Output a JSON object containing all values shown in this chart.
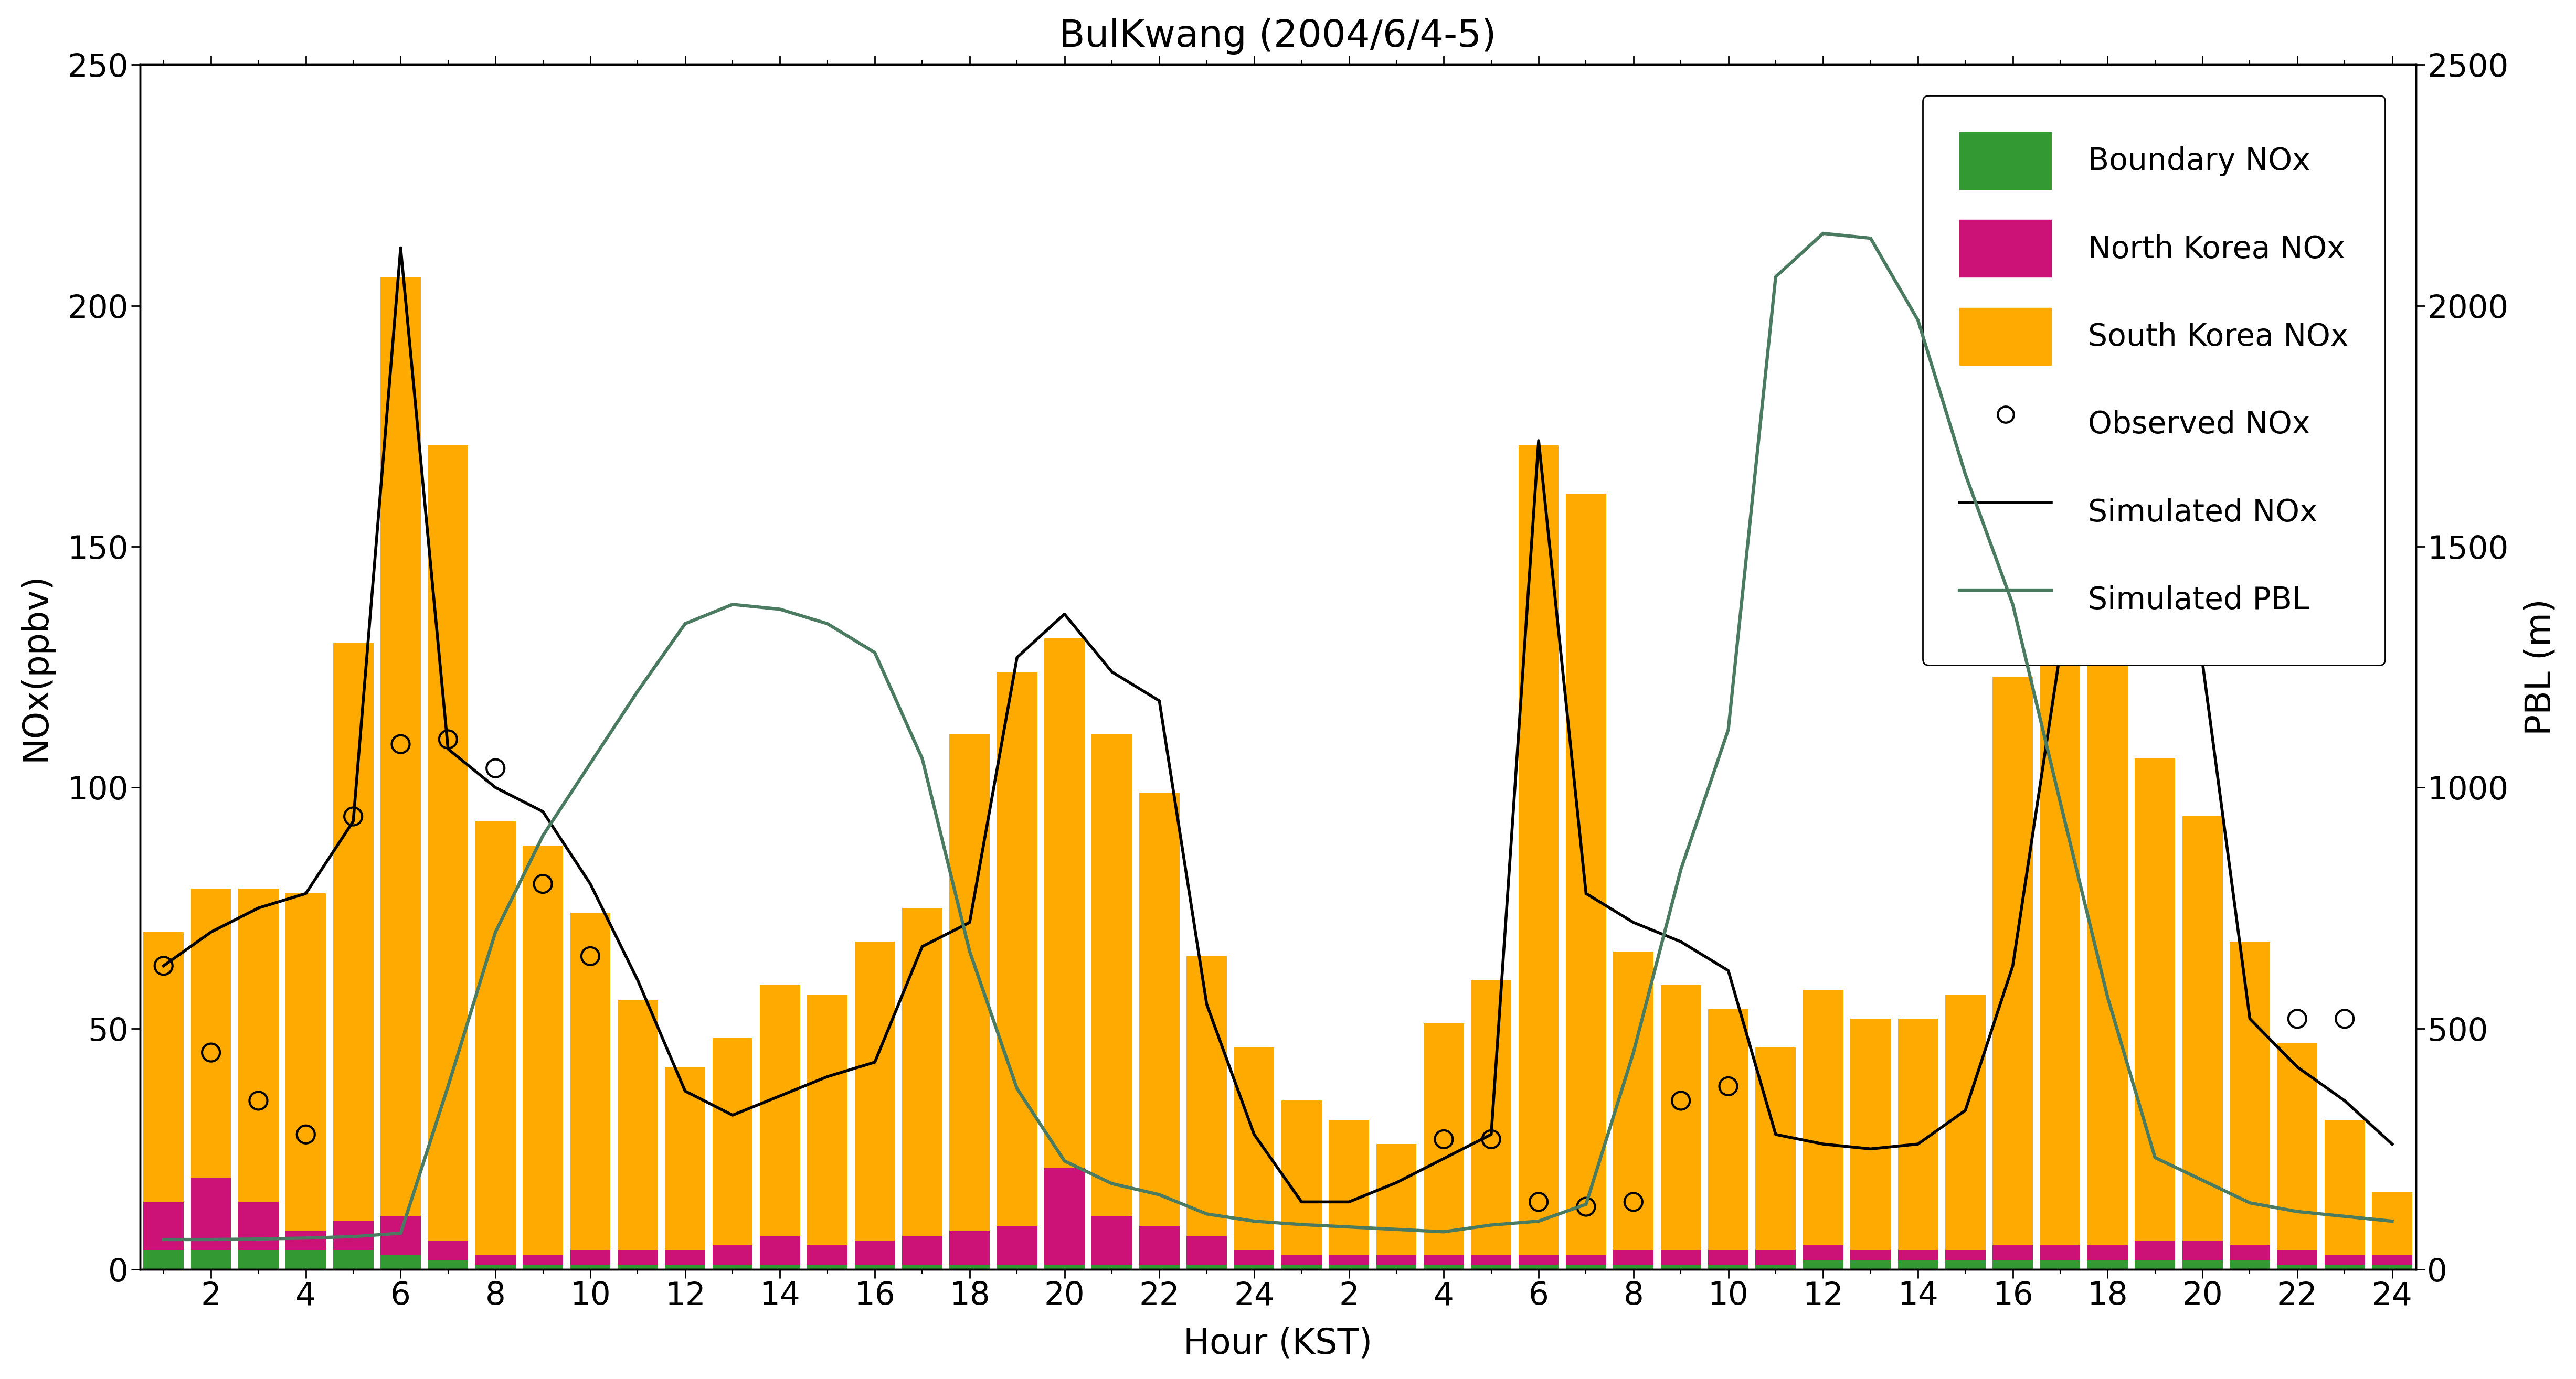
{
  "title": "BulKwang (2004/6/4-5)",
  "xlabel": "Hour (KST)",
  "ylabel_left": "NOx(ppbv)",
  "ylabel_right": "PBL (m)",
  "ylim_left": [
    0,
    250
  ],
  "ylim_right": [
    0,
    2500
  ],
  "hours": [
    1,
    2,
    3,
    4,
    5,
    6,
    7,
    8,
    9,
    10,
    11,
    12,
    13,
    14,
    15,
    16,
    17,
    18,
    19,
    20,
    21,
    22,
    23,
    24,
    25,
    26,
    27,
    28,
    29,
    30,
    31,
    32,
    33,
    34,
    35,
    36,
    37,
    38,
    39,
    40,
    41,
    42,
    43,
    44,
    45,
    46,
    47,
    48
  ],
  "xtick_labels": [
    "2",
    "4",
    "6",
    "8",
    "10",
    "12",
    "14",
    "16",
    "18",
    "20",
    "22",
    "24",
    "2",
    "4",
    "6",
    "8",
    "10",
    "12",
    "14",
    "16",
    "18",
    "20",
    "22",
    "24"
  ],
  "xtick_positions": [
    2,
    4,
    6,
    8,
    10,
    12,
    14,
    16,
    18,
    20,
    22,
    24,
    26,
    28,
    30,
    32,
    34,
    36,
    38,
    40,
    42,
    44,
    46,
    48
  ],
  "boundary_nox": [
    4,
    4,
    4,
    4,
    4,
    3,
    2,
    1,
    1,
    1,
    1,
    1,
    1,
    1,
    1,
    1,
    1,
    1,
    1,
    1,
    1,
    1,
    1,
    1,
    1,
    1,
    1,
    1,
    1,
    1,
    1,
    1,
    1,
    1,
    1,
    2,
    2,
    2,
    2,
    2,
    2,
    2,
    2,
    2,
    2,
    1,
    1,
    1
  ],
  "nk_nox": [
    10,
    15,
    10,
    4,
    6,
    8,
    4,
    2,
    2,
    3,
    3,
    3,
    4,
    6,
    4,
    5,
    6,
    7,
    8,
    20,
    10,
    8,
    6,
    3,
    2,
    2,
    2,
    2,
    2,
    2,
    2,
    3,
    3,
    3,
    3,
    3,
    2,
    2,
    2,
    3,
    3,
    3,
    4,
    4,
    3,
    3,
    2,
    2
  ],
  "sk_nox": [
    56,
    60,
    65,
    70,
    120,
    195,
    165,
    90,
    85,
    70,
    52,
    38,
    43,
    52,
    52,
    62,
    68,
    103,
    115,
    110,
    100,
    90,
    58,
    42,
    32,
    28,
    23,
    48,
    57,
    168,
    158,
    62,
    55,
    50,
    42,
    53,
    48,
    48,
    53,
    118,
    130,
    122,
    100,
    88,
    63,
    43,
    28,
    13
  ],
  "simulated_nox": [
    63,
    70,
    75,
    78,
    93,
    212,
    108,
    100,
    95,
    80,
    60,
    37,
    32,
    36,
    40,
    43,
    67,
    72,
    127,
    136,
    124,
    118,
    55,
    28,
    14,
    14,
    18,
    23,
    28,
    172,
    78,
    72,
    68,
    62,
    28,
    26,
    25,
    26,
    33,
    63,
    128,
    138,
    142,
    126,
    52,
    42,
    35,
    26
  ],
  "observed_nox": [
    63,
    45,
    35,
    28,
    94,
    109,
    110,
    104,
    80,
    65,
    null,
    null,
    null,
    null,
    null,
    null,
    null,
    null,
    null,
    null,
    null,
    null,
    null,
    null,
    null,
    null,
    null,
    27,
    27,
    14,
    13,
    14,
    35,
    38,
    null,
    null,
    null,
    null,
    null,
    null,
    null,
    null,
    null,
    null,
    null,
    52,
    52,
    null
  ],
  "pbl": [
    62,
    62,
    63,
    65,
    68,
    75,
    380,
    700,
    900,
    1050,
    1200,
    1340,
    1380,
    1370,
    1340,
    1280,
    1060,
    660,
    375,
    225,
    178,
    155,
    115,
    100,
    93,
    88,
    83,
    78,
    92,
    100,
    135,
    450,
    830,
    1120,
    2060,
    2150,
    2140,
    1970,
    1650,
    1380,
    970,
    565,
    232,
    185,
    138,
    120,
    110,
    100
  ],
  "bar_width": 0.85,
  "color_boundary": "#339933",
  "color_nk": "#cc1177",
  "color_sk": "#ffaa00",
  "color_sim_nox": "#000000",
  "color_pbl": "#4a7a60",
  "title_fontsize": 52,
  "label_fontsize": 48,
  "tick_fontsize": 44,
  "legend_fontsize": 42
}
